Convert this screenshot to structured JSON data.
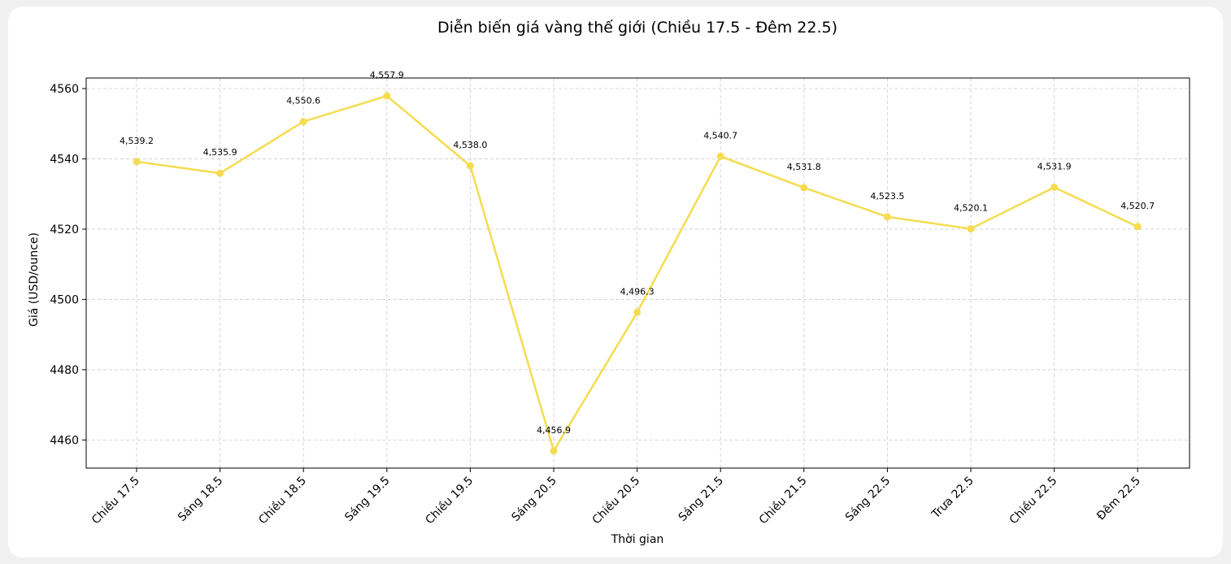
{
  "chart_data": {
    "type": "line",
    "title": "Diễn biến giá vàng thế giới (Chiều 17.5 - Đêm 22.5)",
    "xlabel": "Thời gian",
    "ylabel": "Giá (USD/ounce)",
    "categories": [
      "Chiều 17.5",
      "Sáng 18.5",
      "Chiều 18.5",
      "Sáng 19.5",
      "Chiều 19.5",
      "Sáng 20.5",
      "Chiều 20.5",
      "Sáng 21.5",
      "Chiều 21.5",
      "Sáng 22.5",
      "Trưa 22.5",
      "Chiều 22.5",
      "Đêm 22.5"
    ],
    "series": [
      {
        "values": [
          4539.2,
          4535.9,
          4550.6,
          4557.9,
          4538.0,
          4456.9,
          4496.3,
          4540.7,
          4531.8,
          4523.5,
          4520.1,
          4531.9,
          4520.7
        ],
        "labels": [
          "4,539.2",
          "4,535.9",
          "4,550.6",
          "4,557.9",
          "4,538.0",
          "4,456.9",
          "4,496.3",
          "4,540.7",
          "4,531.8",
          "4,523.5",
          "4,520.1",
          "4,531.9",
          "4,520.7"
        ]
      }
    ],
    "yticks": [
      4460,
      4480,
      4500,
      4520,
      4540,
      4560
    ],
    "ylim": [
      4452,
      4563
    ],
    "grid": true,
    "line_color": "#f5dc50",
    "background": "#ffffff"
  }
}
